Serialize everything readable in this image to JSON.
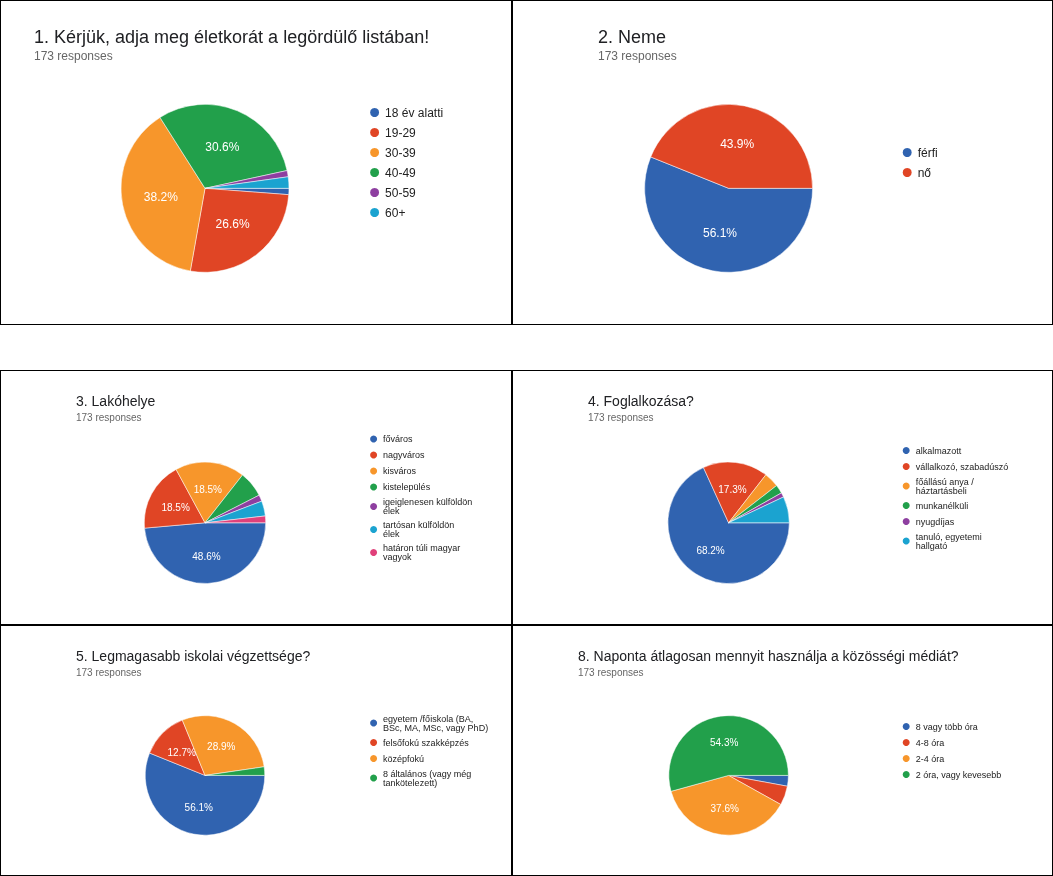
{
  "chart_data": [
    {
      "type": "pie",
      "title": "1. Kérjük, adja meg életkorát a legördülő listában!",
      "subtitle": "173 responses",
      "legend": "right",
      "categories": [
        "18 év alatti",
        "19-29",
        "30-39",
        "40-49",
        "50-59",
        "60+"
      ],
      "values": [
        1.2,
        26.6,
        38.2,
        30.6,
        1.2,
        2.2
      ],
      "value_labels": [
        null,
        "26.6%",
        "38.2%",
        "30.6%",
        null,
        null
      ],
      "colors": [
        "#3063b0",
        "#e04525",
        "#f7962b",
        "#22a04b",
        "#8e3fa0",
        "#1ba3d0"
      ]
    },
    {
      "type": "pie",
      "title": "2. Neme",
      "subtitle": "173 responses",
      "legend": "right",
      "categories": [
        "férfi",
        "nő"
      ],
      "values": [
        56.1,
        43.9
      ],
      "value_labels": [
        "56.1%",
        "43.9%"
      ],
      "colors": [
        "#3063b0",
        "#e04525"
      ]
    },
    {
      "type": "pie",
      "title": "3. Lakóhelye",
      "subtitle": "173 responses",
      "legend": "right",
      "categories": [
        "főváros",
        "nagyváros",
        "kisváros",
        "kistelepülés",
        "igeiglenesen külföldön élek",
        "tartósan külföldön élek",
        "határon túli magyar vagyok"
      ],
      "values": [
        48.6,
        18.5,
        18.5,
        6.9,
        1.7,
        4.0,
        1.8
      ],
      "value_labels": [
        "48.6%",
        "18.5%",
        "18.5%",
        null,
        null,
        null,
        null
      ],
      "colors": [
        "#3063b0",
        "#e04525",
        "#f7962b",
        "#22a04b",
        "#8e3fa0",
        "#1ba3d0",
        "#e0407a"
      ]
    },
    {
      "type": "pie",
      "title": "4. Foglalkozása?",
      "subtitle": "173 responses",
      "legend": "right",
      "categories": [
        "alkalmazott",
        "vállalkozó, szabadúszó",
        "főállású anya /háztartásbeli",
        "munkanélküli",
        "nyugdíjas",
        "tanuló, egyetemi hallgató"
      ],
      "values": [
        68.2,
        17.3,
        4.0,
        2.3,
        1.2,
        7.0
      ],
      "value_labels": [
        "68.2%",
        "17.3%",
        null,
        null,
        null,
        null
      ],
      "colors": [
        "#3063b0",
        "#e04525",
        "#f7962b",
        "#22a04b",
        "#8e3fa0",
        "#1ba3d0"
      ]
    },
    {
      "type": "pie",
      "title": "5. Legmagasabb iskolai végzettsége?",
      "subtitle": "173 responses",
      "legend": "right",
      "categories": [
        "egyetem /főiskola (BA, BSc, MA, MSc, vagy PhD)",
        "felsőfokú szakképzés",
        "középfokú",
        "8 általános (vagy még tankötelezett)"
      ],
      "values": [
        56.1,
        12.7,
        28.9,
        2.3
      ],
      "value_labels": [
        "56.1%",
        "12.7%",
        "28.9%",
        null
      ],
      "colors": [
        "#3063b0",
        "#e04525",
        "#f7962b",
        "#22a04b"
      ]
    },
    {
      "type": "pie",
      "title": "8. Naponta átlagosan mennyit használja a közösségi médiát?",
      "subtitle": "173 responses",
      "legend": "right",
      "categories": [
        "8 vagy több óra",
        "4-8 óra",
        "2-4 óra",
        "2 óra, vagy kevesebb"
      ],
      "values": [
        2.9,
        5.2,
        37.6,
        54.3
      ],
      "value_labels": [
        null,
        null,
        "37.6%",
        "54.3%"
      ],
      "colors": [
        "#3063b0",
        "#e04525",
        "#f7962b",
        "#22a04b"
      ]
    }
  ]
}
